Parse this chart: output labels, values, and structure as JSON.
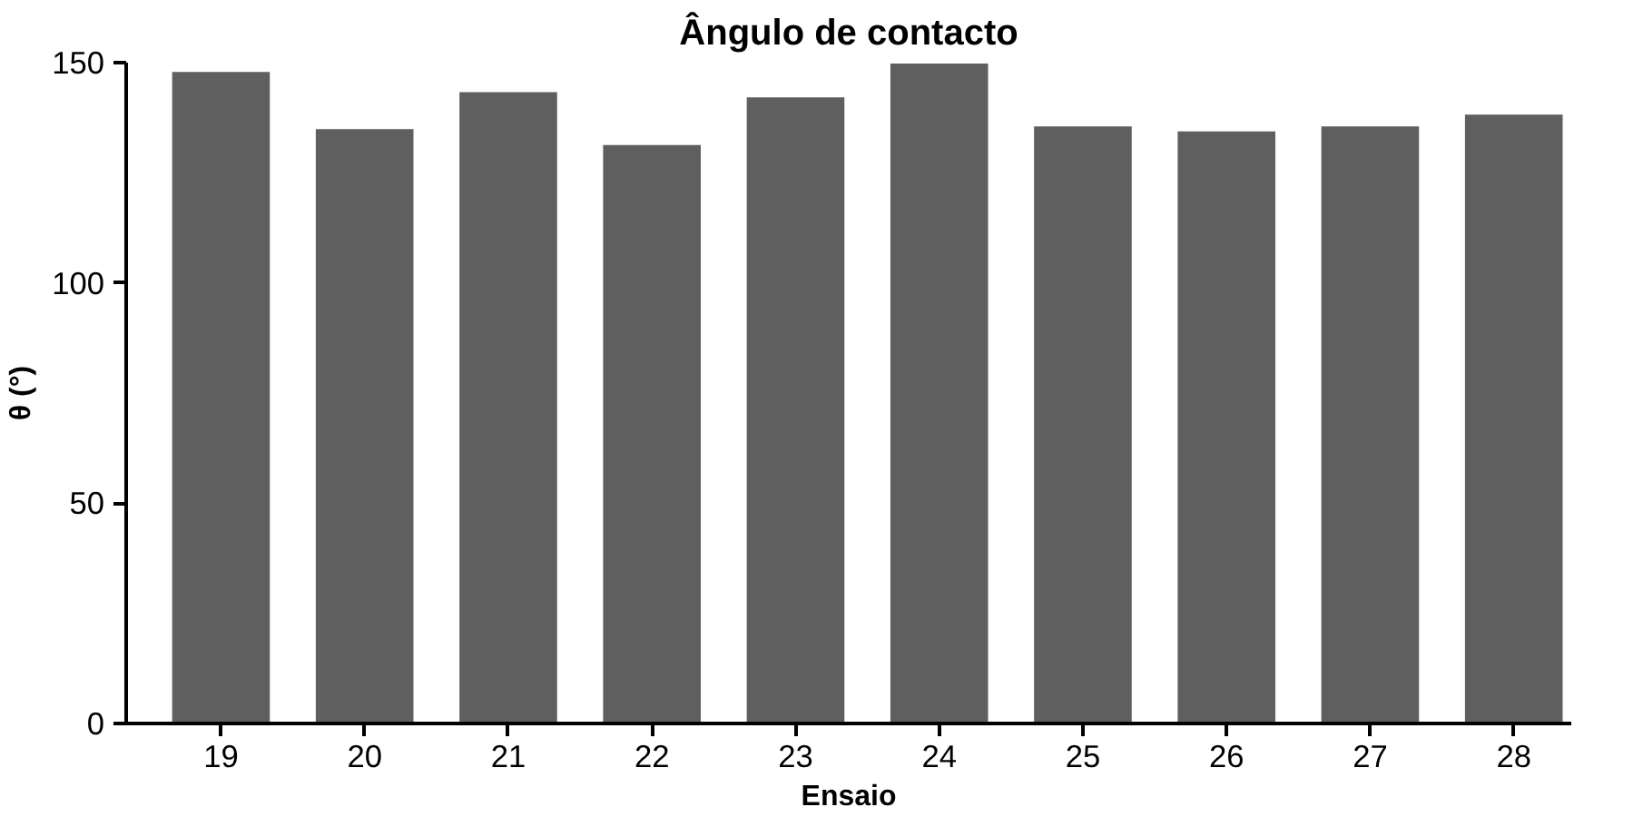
{
  "chart_data": {
    "type": "bar",
    "title": "Ângulo de contacto",
    "xlabel": "Ensaio",
    "ylabel": "θ (°)",
    "categories": [
      "19",
      "20",
      "21",
      "22",
      "23",
      "24",
      "25",
      "26",
      "27",
      "28"
    ],
    "values": [
      147.9,
      134.9,
      143.3,
      131.3,
      142.1,
      149.8,
      135.5,
      134.4,
      135.5,
      138.2
    ],
    "color": "#5e5f5e",
    "ylim": [
      0,
      150
    ],
    "yticks": [
      0,
      50,
      100,
      150
    ],
    "grid": false
  }
}
